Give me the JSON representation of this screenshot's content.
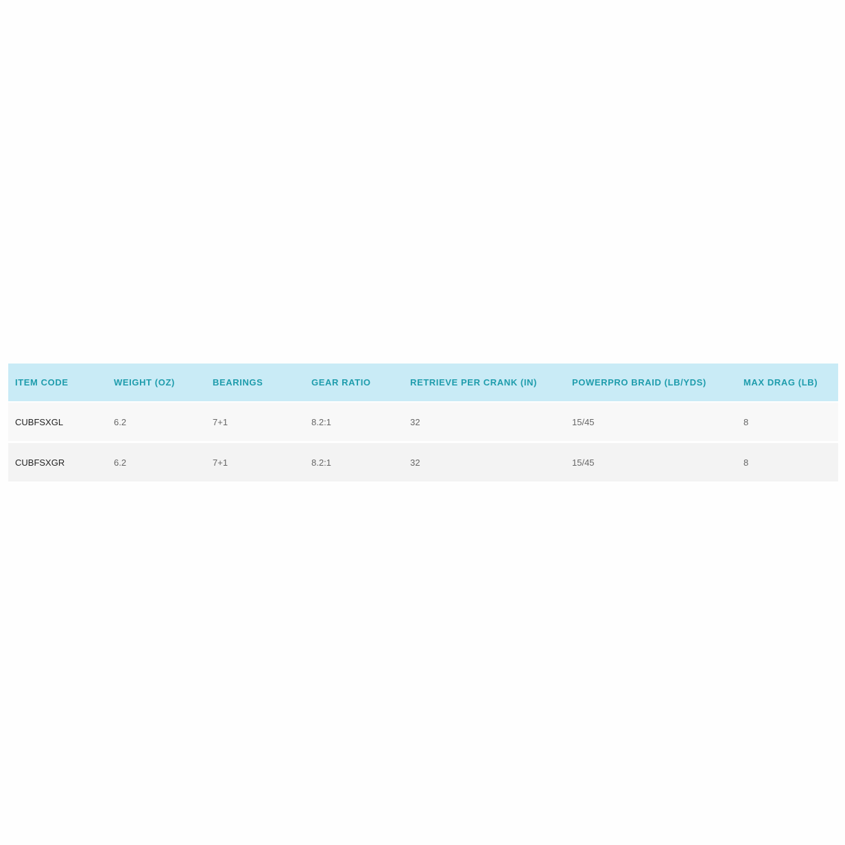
{
  "table": {
    "headers": [
      "ITEM CODE",
      "WEIGHT (OZ)",
      "BEARINGS",
      "GEAR RATIO",
      "RETRIEVE PER CRANK (IN)",
      "POWERPRO BRAID (LB/YDS)",
      "MAX DRAG (LB)"
    ],
    "rows": [
      [
        "CUBFSXGL",
        "6.2",
        "7+1",
        "8.2:1",
        "32",
        "15/45",
        "8"
      ],
      [
        "CUBFSXGR",
        "6.2",
        "7+1",
        "8.2:1",
        "32",
        "15/45",
        "8"
      ]
    ]
  },
  "colors": {
    "header_bg": "#c9ebf6",
    "header_text": "#1e9cac",
    "row_odd": "#f8f8f8",
    "row_even": "#f3f3f3"
  }
}
